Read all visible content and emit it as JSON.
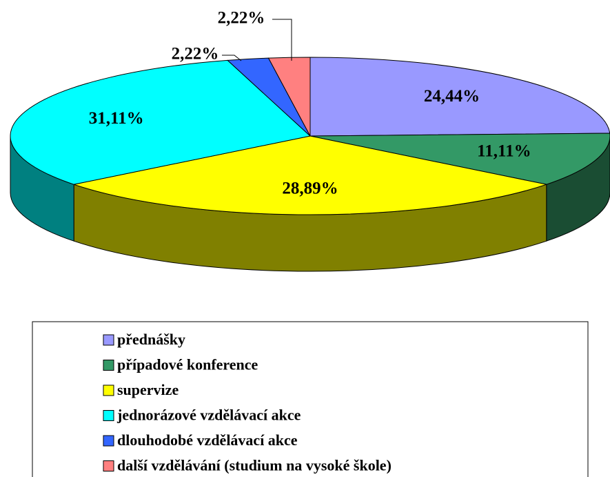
{
  "chart_data": {
    "type": "pie3d",
    "categories": [
      "přednášky",
      "případové konference",
      "supervize",
      "jednorázové vzdělávací akce",
      "dlouhodobé vzdělávací akce",
      "další vzdělávání (studium na vysoké škole)"
    ],
    "values": [
      24.44,
      11.11,
      28.89,
      31.11,
      2.22,
      2.22
    ],
    "value_labels": [
      "24,44%",
      "11,11%",
      "28,89%",
      "31,11%",
      "2,22%",
      "2,22%"
    ],
    "colors": [
      "#9999ff",
      "#339966",
      "#ffff00",
      "#00ffff",
      "#3366ff",
      "#ff8080"
    ],
    "legend": "bottom"
  }
}
